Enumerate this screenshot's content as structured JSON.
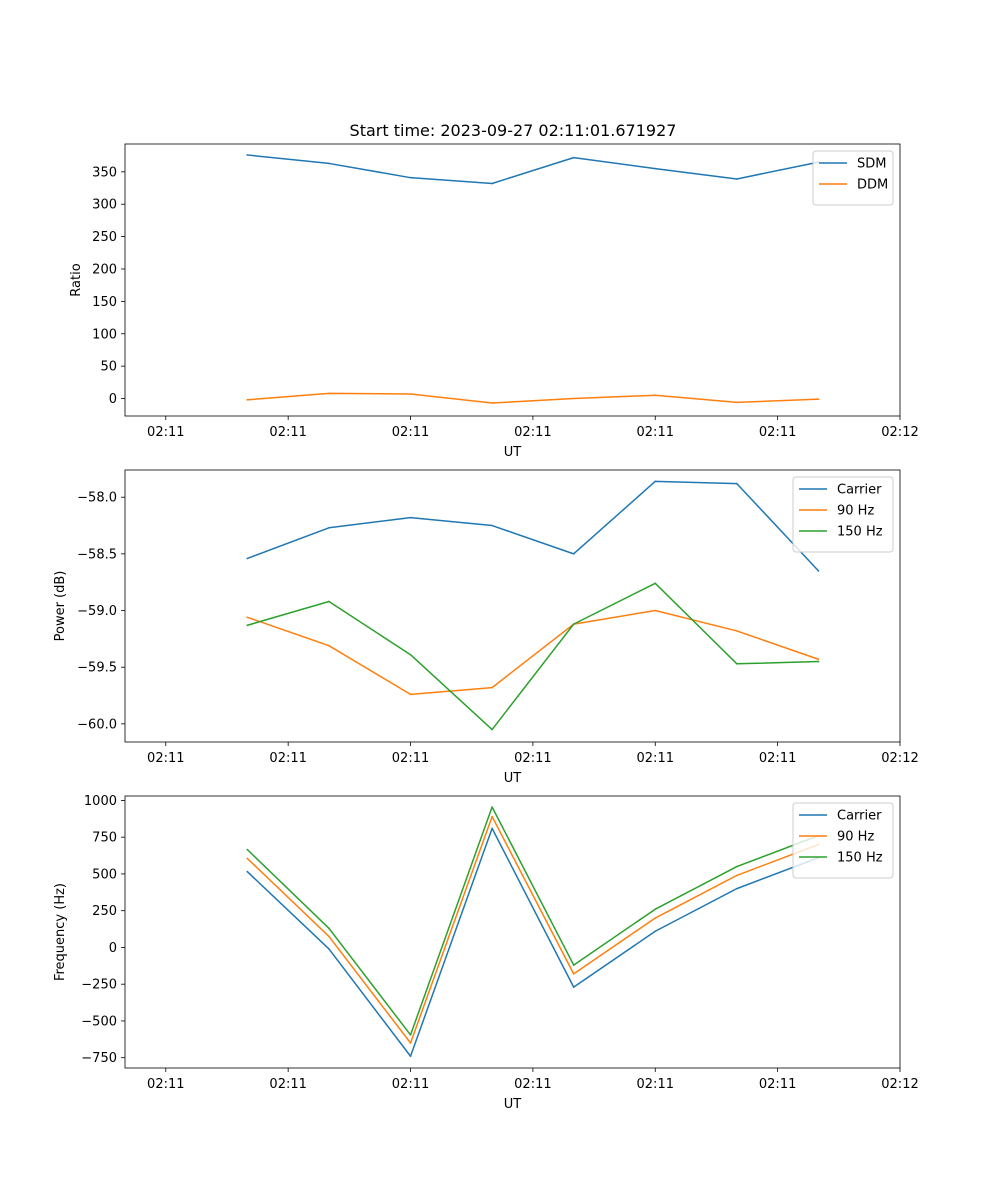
{
  "chart_data": [
    {
      "type": "line",
      "title": "Start time: 2023-09-27 02:11:01.671927",
      "xlabel": "UT",
      "ylabel": "Ratio",
      "x": [
        0.5,
        1.0,
        1.5,
        2.0,
        2.5,
        3.0,
        3.5,
        4.0
      ],
      "xlim": [
        -0.25,
        4.5
      ],
      "xticks": [
        0,
        0.75,
        1.5,
        2.25,
        3.0,
        3.75,
        4.5
      ],
      "xtick_labels": [
        "02:11",
        "02:11",
        "02:11",
        "02:11",
        "02:11",
        "02:11",
        "02:12"
      ],
      "ylim": [
        -27,
        393
      ],
      "yticks": [
        0,
        50,
        100,
        150,
        200,
        250,
        300,
        350
      ],
      "ytick_labels": [
        "0",
        "50",
        "100",
        "150",
        "200",
        "250",
        "300",
        "350"
      ],
      "legend_position": "top-right",
      "series": [
        {
          "name": "SDM",
          "color": "#1f77b4",
          "values": [
            376,
            363,
            341,
            332,
            372,
            355,
            339,
            365
          ]
        },
        {
          "name": "DDM",
          "color": "#ff7f0e",
          "values": [
            -2,
            8,
            7,
            -7,
            0,
            5,
            -6,
            -1
          ]
        }
      ]
    },
    {
      "type": "line",
      "title": "",
      "xlabel": "UT",
      "ylabel": "Power (dB)",
      "x": [
        0.5,
        1.0,
        1.5,
        2.0,
        2.5,
        3.0,
        3.5,
        4.0
      ],
      "xlim": [
        -0.25,
        4.5
      ],
      "xticks": [
        0,
        0.75,
        1.5,
        2.25,
        3.0,
        3.75,
        4.5
      ],
      "xtick_labels": [
        "02:11",
        "02:11",
        "02:11",
        "02:11",
        "02:11",
        "02:11",
        "02:12"
      ],
      "ylim": [
        -60.16,
        -57.76
      ],
      "yticks": [
        -60.0,
        -59.5,
        -59.0,
        -58.5,
        -58.0
      ],
      "ytick_labels": [
        "−60.0",
        "−59.5",
        "−59.0",
        "−58.5",
        "−58.0"
      ],
      "legend_position": "top-right",
      "series": [
        {
          "name": "Carrier",
          "color": "#1f77b4",
          "values": [
            -58.54,
            -58.27,
            -58.18,
            -58.25,
            -58.5,
            -57.86,
            -57.88,
            -58.65
          ]
        },
        {
          "name": "90 Hz",
          "color": "#ff7f0e",
          "values": [
            -59.06,
            -59.31,
            -59.74,
            -59.68,
            -59.12,
            -59.0,
            -59.18,
            -59.43
          ]
        },
        {
          "name": "150 Hz",
          "color": "#2ca02c",
          "values": [
            -59.13,
            -58.92,
            -59.39,
            -60.05,
            -59.12,
            -58.76,
            -59.47,
            -59.45
          ]
        }
      ]
    },
    {
      "type": "line",
      "title": "",
      "xlabel": "UT",
      "ylabel": "Frequency (Hz)",
      "x": [
        0.5,
        1.0,
        1.5,
        2.0,
        2.5,
        3.0,
        3.5,
        4.0
      ],
      "xlim": [
        -0.25,
        4.5
      ],
      "xticks": [
        0,
        0.75,
        1.5,
        2.25,
        3.0,
        3.75,
        4.5
      ],
      "xtick_labels": [
        "02:11",
        "02:11",
        "02:11",
        "02:11",
        "02:11",
        "02:11",
        "02:12"
      ],
      "ylim": [
        -820,
        1030
      ],
      "yticks": [
        -750,
        -500,
        -250,
        0,
        250,
        500,
        750,
        1000
      ],
      "ytick_labels": [
        "−750",
        "−500",
        "−250",
        "0",
        "250",
        "500",
        "750",
        "1000"
      ],
      "legend_position": "top-right",
      "series": [
        {
          "name": "Carrier",
          "color": "#1f77b4",
          "values": [
            515,
            -10,
            -740,
            810,
            -270,
            110,
            400,
            610
          ]
        },
        {
          "name": "90 Hz",
          "color": "#ff7f0e",
          "values": [
            605,
            75,
            -650,
            890,
            -180,
            200,
            490,
            700
          ]
        },
        {
          "name": "150 Hz",
          "color": "#2ca02c",
          "values": [
            665,
            130,
            -595,
            955,
            -120,
            260,
            550,
            760
          ]
        }
      ]
    }
  ]
}
